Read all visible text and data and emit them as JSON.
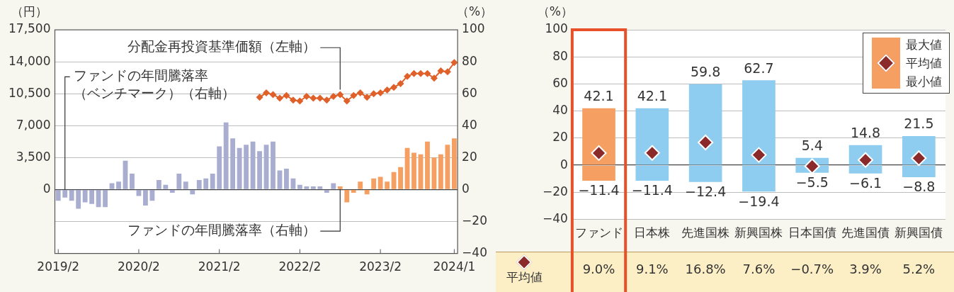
{
  "chart_data": [
    {
      "type": "bar",
      "ylabel": "（円）",
      "y2label": "（%）",
      "categories": [
        "2019/2",
        null,
        null,
        null,
        null,
        null,
        null,
        null,
        null,
        null,
        null,
        null,
        "2020/2",
        null,
        null,
        null,
        null,
        null,
        null,
        null,
        null,
        null,
        null,
        null,
        "2021/2",
        null,
        null,
        null,
        null,
        null,
        null,
        null,
        null,
        null,
        null,
        null,
        "2022/2",
        null,
        null,
        null,
        null,
        null,
        null,
        null,
        null,
        null,
        null,
        null,
        "2023/2",
        null,
        null,
        null,
        null,
        null,
        null,
        null,
        null,
        null,
        null,
        "2024/1"
      ],
      "series": [
        {
          "name": "ファンドの年間騰落率（ベンチマーク）（右軸）",
          "type": "bar",
          "axis": "y2",
          "color": "#a9aed0",
          "values": [
            -7,
            -5,
            -7,
            -12,
            -8,
            -9,
            -11,
            -11,
            4,
            5,
            18,
            10,
            -4,
            -10,
            -7,
            6,
            3,
            -2,
            10,
            5,
            -3,
            6,
            7,
            10,
            27,
            42,
            32,
            26,
            28,
            30,
            24,
            28,
            30,
            12,
            13,
            7,
            3,
            2,
            2,
            2,
            -2,
            4,
            null,
            null,
            null,
            null,
            null,
            null,
            null,
            null,
            null,
            null,
            null,
            null,
            null,
            null,
            null,
            null,
            null,
            null
          ]
        },
        {
          "name": "ファンドの年間騰落率（右軸）",
          "type": "bar",
          "axis": "y2",
          "color": "#f5a062",
          "values": [
            null,
            null,
            null,
            null,
            null,
            null,
            null,
            null,
            null,
            null,
            null,
            null,
            null,
            null,
            null,
            null,
            null,
            null,
            null,
            null,
            null,
            null,
            null,
            null,
            null,
            null,
            null,
            null,
            null,
            null,
            null,
            null,
            null,
            null,
            null,
            null,
            null,
            null,
            null,
            null,
            null,
            null,
            2,
            -8,
            -2,
            5,
            -3,
            7,
            8,
            5,
            11,
            14,
            26,
            23,
            22,
            30,
            20,
            22,
            28,
            32
          ]
        },
        {
          "name": "分配金再投資基準価額（左軸）",
          "type": "line",
          "color": "#e0602a",
          "marker": "diamond",
          "values": [
            null,
            null,
            null,
            null,
            null,
            null,
            null,
            null,
            null,
            null,
            null,
            null,
            null,
            null,
            null,
            null,
            null,
            null,
            null,
            null,
            null,
            null,
            null,
            null,
            null,
            null,
            null,
            null,
            null,
            null,
            10100,
            10600,
            10400,
            10000,
            10300,
            9800,
            9700,
            10200,
            10000,
            10000,
            9800,
            10200,
            10400,
            9700,
            10300,
            10600,
            10100,
            10500,
            10600,
            10900,
            11200,
            11600,
            12400,
            12700,
            12700,
            12700,
            12200,
            13000,
            12900,
            13900
          ]
        }
      ],
      "ylim": [
        -7000,
        17500
      ],
      "yticks": [
        0,
        {
          "value": 3500,
          "label": "3,500"
        },
        {
          "value": 7000,
          "label": "7,000"
        },
        {
          "value": 10500,
          "label": "10,500"
        },
        {
          "value": 14000,
          "label": "14,000"
        },
        {
          "value": 17500,
          "label": "17,500"
        }
      ],
      "y2lim": [
        -40,
        100
      ],
      "y2ticks": [
        {
          "value": -40,
          "label": "−40"
        },
        {
          "value": -20,
          "label": "−20"
        },
        0,
        20,
        40,
        60,
        80,
        100
      ],
      "grid": "y",
      "legend": false
    },
    {
      "type": "bar",
      "stacked": true,
      "ylabel": "（%）",
      "categories": [
        "ファンド",
        "日本株",
        "先進国株",
        "新興国株",
        "日本国債",
        "先進国債",
        "新興国債"
      ],
      "series": [
        {
          "name": "最大値",
          "colors": [
            "#f5a062",
            "#8ecdef",
            "#8ecdef",
            "#8ecdef",
            "#8ecdef",
            "#8ecdef",
            "#8ecdef"
          ],
          "values": [
            42.1,
            42.1,
            59.8,
            62.7,
            5.4,
            14.8,
            21.5
          ]
        },
        {
          "name": "最小値",
          "colors": [
            "#f5a062",
            "#8ecdef",
            "#8ecdef",
            "#8ecdef",
            "#8ecdef",
            "#8ecdef",
            "#8ecdef"
          ],
          "values": [
            -11.4,
            -11.4,
            -12.4,
            -19.4,
            -5.5,
            -6.1,
            -8.8
          ]
        },
        {
          "name": "平均値",
          "type": "scatter",
          "color": "#8b2a2a",
          "marker": "diamond",
          "x": [
            "ファンド",
            "日本株",
            "先進国株",
            "新興国株",
            "日本国債",
            "先進国債",
            "新興国債"
          ],
          "values": [
            9.0,
            9.1,
            16.8,
            7.6,
            -0.7,
            3.9,
            5.2
          ],
          "value_labels": [
            "9.0%",
            "9.1%",
            "16.8%",
            "7.6%",
            "−0.7%",
            "3.9%",
            "5.2%"
          ]
        }
      ],
      "ylim": [
        -40,
        100
      ],
      "yticks": [
        {
          "value": -40,
          "label": "−40"
        },
        {
          "value": -20,
          "label": "−20"
        },
        0,
        20,
        40,
        60,
        80,
        100
      ],
      "grid": "y",
      "legend": "top right",
      "data_labels": true
    }
  ]
}
